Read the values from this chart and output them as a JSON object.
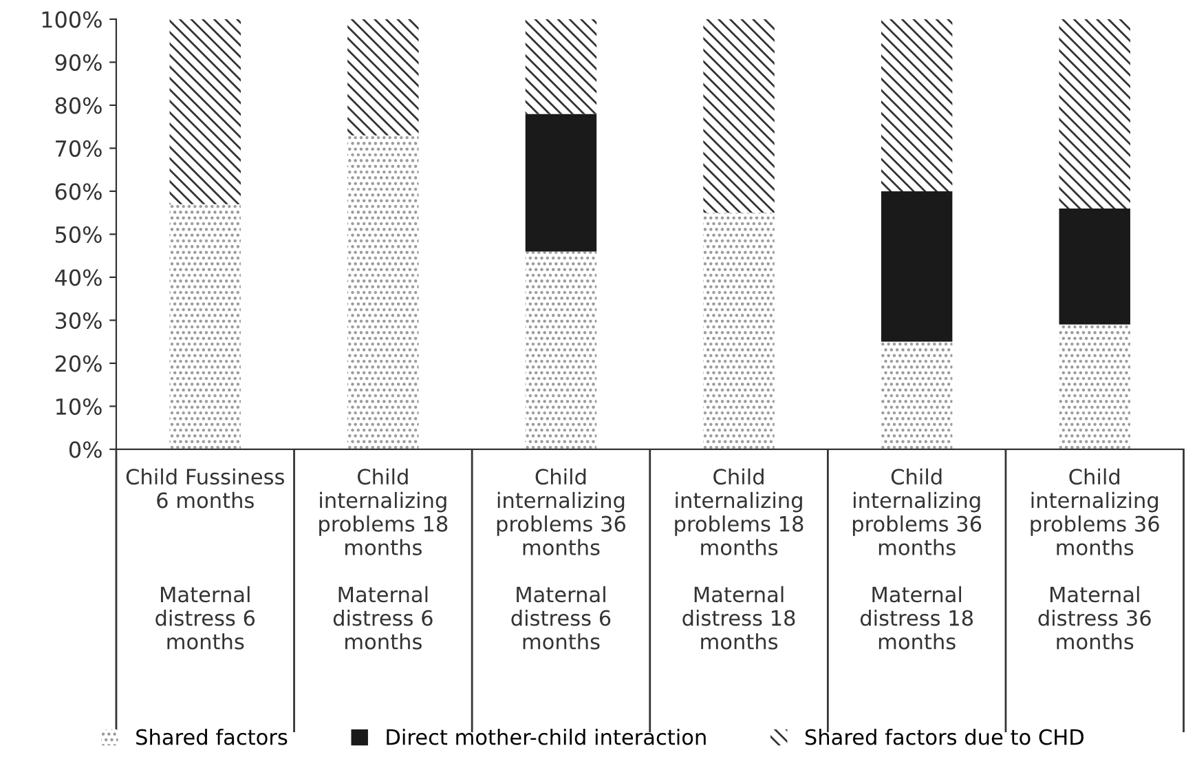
{
  "chart_data": {
    "type": "bar",
    "stacked": true,
    "categories": [
      "Child Fussiness\n6 months\n\n\n\nMaternal\ndistress 6\nmonths",
      "Child\ninternalizing\nproblems 18\nmonths\n\nMaternal\ndistress 6\nmonths",
      "Child\ninternalizing\nproblems 36\nmonths\n\nMaternal\ndistress 6\nmonths",
      "Child\ninternalizing\nproblems 18\nmonths\n\nMaternal\ndistress 18\nmonths",
      "Child\ninternalizing\nproblems 36\nmonths\n\nMaternal\ndistress 18\nmonths",
      "Child\ninternalizing\nproblems 36\nmonths\n\nMaternal\ndistress 36\nmonths"
    ],
    "series": [
      {
        "name": "Shared factors",
        "color": "#ffffff",
        "values": [
          57,
          73,
          46,
          55,
          25,
          29
        ]
      },
      {
        "name": "Direct mother-child interaction",
        "color": "#1a1a1a",
        "values": [
          0,
          0,
          32,
          0,
          35,
          27
        ]
      },
      {
        "name": "Shared factors due to CHD",
        "color": "#ffffff",
        "values": [
          43,
          27,
          22,
          45,
          40,
          44
        ]
      }
    ],
    "ylim": [
      0,
      100
    ],
    "yticks": [
      {
        "value": 0,
        "label": "0%"
      },
      {
        "value": 10,
        "label": "10%"
      },
      {
        "value": 20,
        "label": "20%"
      },
      {
        "value": 30,
        "label": "30%"
      },
      {
        "value": 40,
        "label": "40%"
      },
      {
        "value": 50,
        "label": "50%"
      },
      {
        "value": 60,
        "label": "60%"
      },
      {
        "value": 70,
        "label": "70%"
      },
      {
        "value": 80,
        "label": "80%"
      },
      {
        "value": 90,
        "label": "90%"
      },
      {
        "value": 100,
        "label": "100%"
      }
    ],
    "grid": false,
    "legend": "bottom"
  }
}
